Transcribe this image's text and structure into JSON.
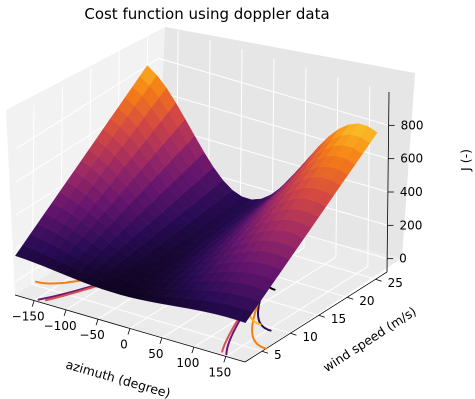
{
  "chart_data": {
    "type": "surface3d",
    "title": "Cost function using doppler data",
    "xlabel": "azimuth (degree)",
    "ylabel": "wind speed (m/s)",
    "zlabel": "J (-)",
    "x_ticks": [
      "−150",
      "−100",
      "−50",
      "0",
      "50",
      "100",
      "150"
    ],
    "y_ticks": [
      "5",
      "10",
      "15",
      "20",
      "25"
    ],
    "z_ticks": [
      "0",
      "200",
      "400",
      "600",
      "800"
    ],
    "xlim": [
      -180,
      180
    ],
    "ylim": [
      2,
      27
    ],
    "zlim": [
      -80,
      1000
    ],
    "colormap": "inferno",
    "minimum_marker": {
      "azimuth": 0,
      "wind_speed": 23,
      "color": "#17becf"
    },
    "contour_levels": [
      {
        "color": "#000000",
        "shape": {
          "a": 0.33,
          "ymax": 24
        }
      },
      {
        "color": "#2e0b55",
        "shape": {
          "a": 0.73,
          "ymax": 24
        }
      },
      {
        "color": "#6b1a6e",
        "shape": {
          "a": 1.2,
          "ymax": 24.5
        }
      },
      {
        "color": "#d94e56",
        "shape": {
          "a": 1.25,
          "ymax": 24.5
        }
      },
      {
        "color": "#f67e14",
        "shape": {
          "a": 0.89,
          "ymax": 23.5
        }
      },
      {
        "color": "#fbb61a",
        "shape": {
          "a": 0.6,
          "ymax": 22
        }
      },
      {
        "color": "#fcf59e",
        "shape": {
          "a": 0.28,
          "ymax": 20.5
        }
      }
    ]
  }
}
